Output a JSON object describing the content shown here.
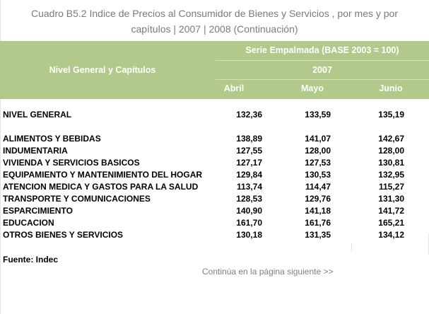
{
  "title": {
    "line1": "Cuadro B5.2 Indice de Precios al Consumidor de Bienes y Servicios , por mes y por",
    "line2": "capítulos | 2007 | 2008 (Continuación)"
  },
  "header": {
    "levels_label": "Nivel General y Capítulos",
    "series_label": "Serie Empalmada (BASE 2003 = 100)",
    "year": "2007",
    "months": [
      "Abril",
      "Mayo",
      "Junio"
    ]
  },
  "rows": [
    {
      "label": "NIVEL GENERAL",
      "values": [
        "132,36",
        "133,59",
        "135,19"
      ]
    },
    {
      "label": "ALIMENTOS Y BEBIDAS",
      "values": [
        "138,89",
        "141,07",
        "142,67"
      ]
    },
    {
      "label": "INDUMENTARIA",
      "values": [
        "127,55",
        "128,00",
        "128,00"
      ]
    },
    {
      "label": "VIVIENDA Y SERVICIOS BASICOS",
      "values": [
        "127,17",
        "127,53",
        "130,81"
      ]
    },
    {
      "label": "EQUIPAMIENTO Y MANTENIMIENTO DEL HOGAR",
      "values": [
        "129,84",
        "130,53",
        "132,95"
      ]
    },
    {
      "label": "ATENCION MEDICA Y GASTOS PARA LA SALUD",
      "values": [
        "113,74",
        "114,47",
        "115,27"
      ]
    },
    {
      "label": "TRANSPORTE Y COMUNICACIONES",
      "values": [
        "128,53",
        "129,76",
        "131,30"
      ]
    },
    {
      "label": "ESPARCIMIENTO",
      "values": [
        "140,90",
        "141,18",
        "141,72"
      ]
    },
    {
      "label": "EDUCACION",
      "values": [
        "161,70",
        "161,76",
        "165,21"
      ]
    },
    {
      "label": "OTROS BIENES Y SERVICIOS",
      "values": [
        "130,18",
        "131,35",
        "134,12"
      ]
    }
  ],
  "source": "Fuente: Indec",
  "continue_link": "Continúa en la página siguiente >>",
  "colors": {
    "header_bg": "#b3c98b",
    "title_text": "#7a7a7a",
    "link_text": "#808080"
  }
}
